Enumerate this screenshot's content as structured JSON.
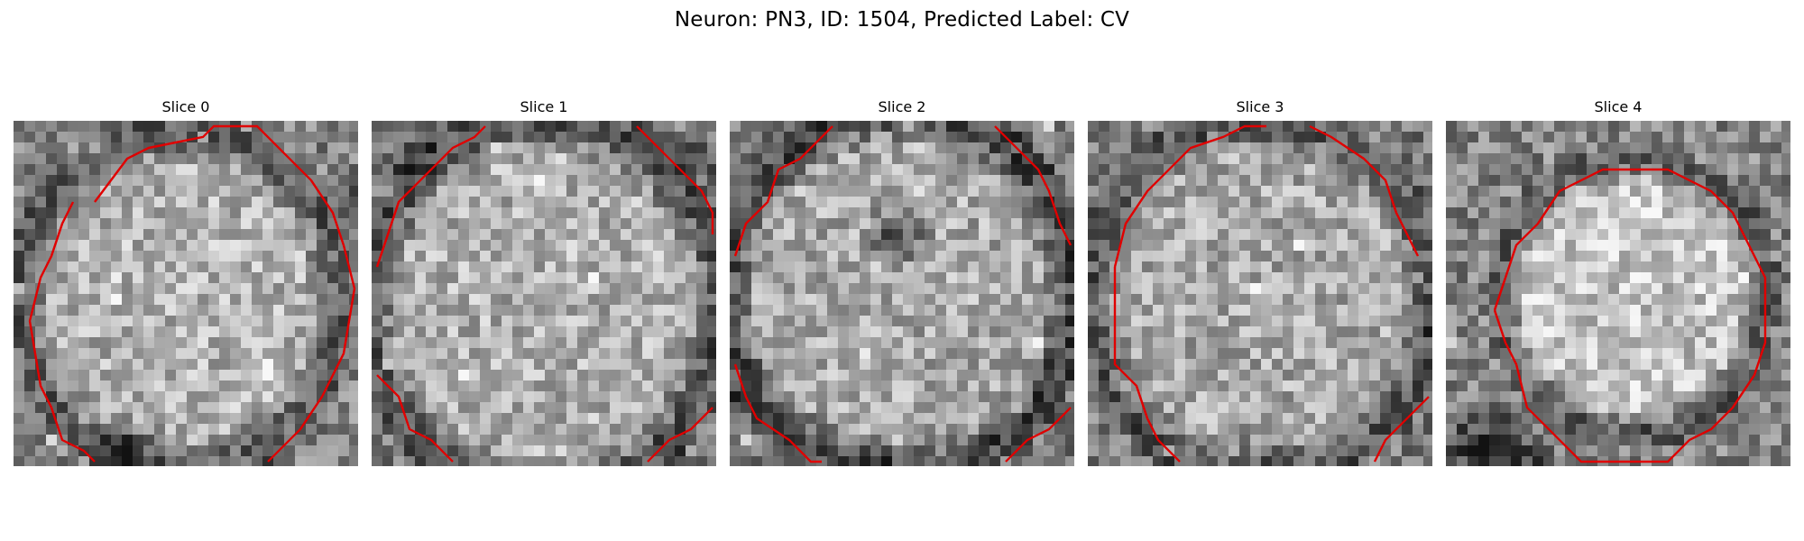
{
  "figure": {
    "title": "Neuron: PN3, ID: 1504, Predicted Label: CV"
  },
  "colors": {
    "contour": "#e00000",
    "background": "#ffffff"
  },
  "slices": [
    {
      "label": "Slice 0",
      "visual": "noisy grayscale cross-section of a round cell with a red segmentation contour touching the panel edges"
    },
    {
      "label": "Slice 1",
      "visual": "noisy grayscale cross-section of a larger round cell with a dark rim and a red segmentation contour"
    },
    {
      "label": "Slice 2",
      "visual": "noisy grayscale cross-section with a dark nucleus-like spot near the upper center and a red contour"
    },
    {
      "label": "Slice 3",
      "visual": "noisy grayscale cross-section of a round cell with a red contour clipped at the panel edges"
    },
    {
      "label": "Slice 4",
      "visual": "noisy grayscale cross-section with a bright circular cell and a fully enclosed red contour"
    }
  ]
}
